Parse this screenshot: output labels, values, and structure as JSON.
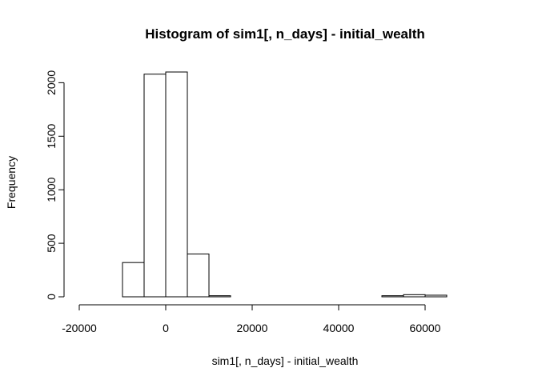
{
  "chart_data": {
    "type": "bar",
    "title": "Histogram of sim1[, n_days] - initial_wealth",
    "xlabel": "sim1[, n_days] - initial_wealth",
    "ylabel": "Frequency",
    "xlim": [
      -20000,
      75000
    ],
    "ylim": [
      0,
      2100
    ],
    "x_ticks": [
      -20000,
      0,
      20000,
      40000,
      60000
    ],
    "x_tick_labels": [
      "-20000",
      "0",
      "20000",
      "40000",
      "60000"
    ],
    "y_ticks": [
      0,
      500,
      1000,
      1500,
      2000
    ],
    "y_tick_labels": [
      "0",
      "500",
      "1000",
      "1500",
      "2000"
    ],
    "grid": false,
    "legend": "none",
    "colors": {
      "bar_fill": "#ffffff",
      "bar_stroke": "#000000",
      "axis": "#000000"
    },
    "bin_edges": [
      -20000,
      -15000,
      -10000,
      -5000,
      0,
      5000,
      10000,
      15000,
      20000,
      25000,
      30000,
      35000,
      40000,
      45000,
      50000,
      55000,
      60000,
      65000,
      70000,
      75000
    ],
    "counts": [
      0,
      0,
      320,
      2080,
      2100,
      400,
      10,
      0,
      0,
      0,
      0,
      0,
      0,
      0,
      10,
      20,
      15,
      0,
      0
    ]
  }
}
